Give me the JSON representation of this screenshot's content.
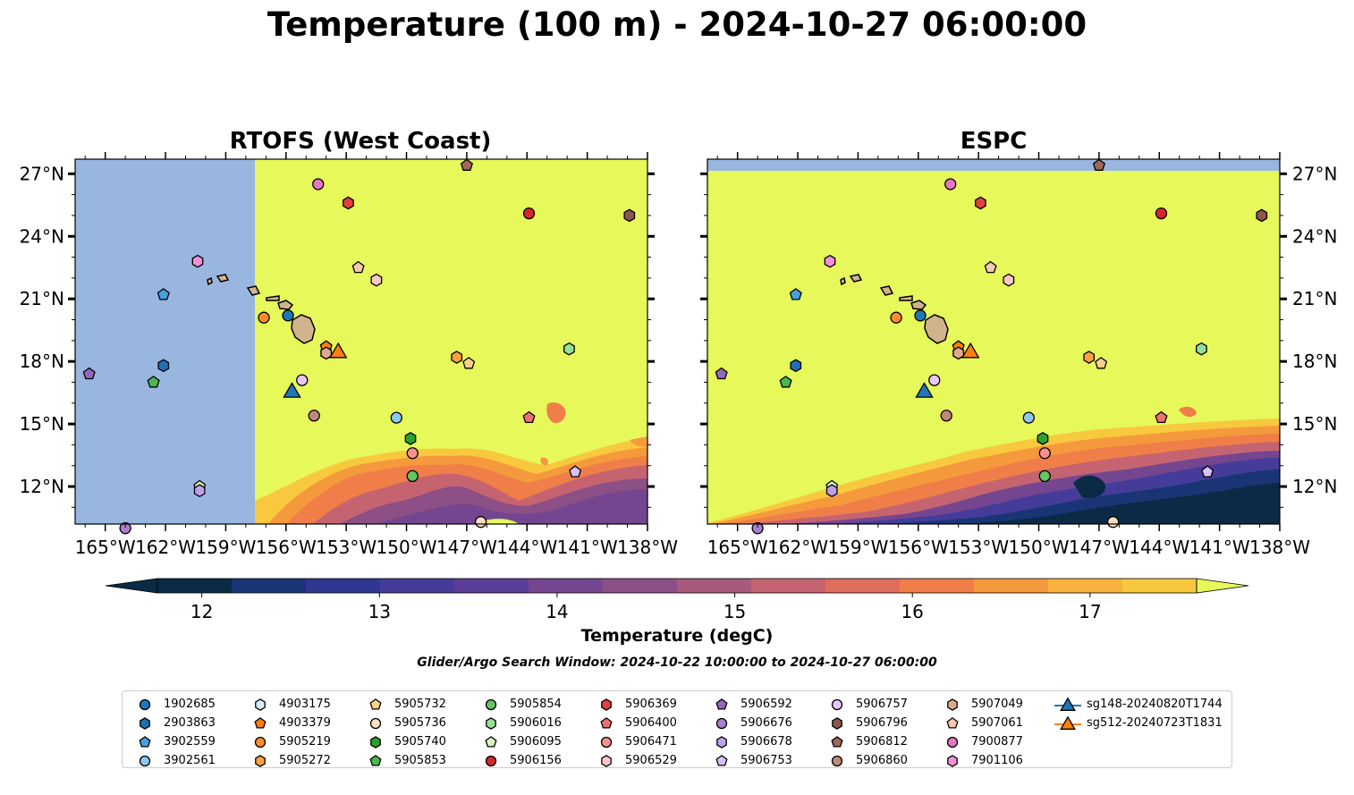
{
  "title": "Temperature (100 m) - 2024-10-27 06:00:00",
  "panels": [
    {
      "title": "RTOFS (West Coast)"
    },
    {
      "title": "ESPC"
    }
  ],
  "axes": {
    "lon_ticks": [
      "165°W",
      "162°W",
      "159°W",
      "156°W",
      "153°W",
      "150°W",
      "147°W",
      "144°W",
      "141°W",
      "138°W"
    ],
    "lat_ticks": [
      "27°N",
      "24°N",
      "21°N",
      "18°N",
      "15°N",
      "12°N"
    ],
    "lon_range": [
      -166.5,
      -138
    ],
    "lat_range": [
      10.2,
      27.7
    ]
  },
  "colorbar": {
    "label": "Temperature (degC)",
    "ticks": [
      "12",
      "13",
      "14",
      "15",
      "16",
      "17"
    ],
    "range": [
      11.75,
      17.6
    ],
    "colors": [
      "#0a2a45",
      "#1a3575",
      "#2e3890",
      "#453c9a",
      "#5a3d98",
      "#744690",
      "#8c4f86",
      "#a85a7c",
      "#c56470",
      "#df6e5d",
      "#f07e48",
      "#f59a3c",
      "#f8b23b",
      "#f8c93e",
      "#e6f85a"
    ],
    "extend": "both"
  },
  "search_window": "Glider/Argo Search Window: 2024-10-22 10:00:00 to 2024-10-27 06:00:00",
  "colors": {
    "ocean_land_mask": "#98b6e0",
    "land": "#d2b48c",
    "warm": "#e6f85a"
  },
  "floats": [
    {
      "id": "1902685",
      "marker": "circle",
      "color": "#1f77b4",
      "lon": -155.9,
      "lat": 20.2
    },
    {
      "id": "2903863",
      "marker": "hexagon",
      "color": "#1f6fb4",
      "lon": -162.1,
      "lat": 17.8
    },
    {
      "id": "3902559",
      "marker": "pentagon",
      "color": "#4a9fe0",
      "lon": -162.1,
      "lat": 21.2
    },
    {
      "id": "3902561",
      "marker": "circle",
      "color": "#8ec8f0",
      "lon": -150.5,
      "lat": 15.3
    },
    {
      "id": "4903175",
      "marker": "hexagon",
      "color": "#d6eefa",
      "lon": -154.0,
      "lat": 18.4
    },
    {
      "id": "4903379",
      "marker": "pentagon",
      "color": "#ff7f0e",
      "lon": -154.0,
      "lat": 18.7
    },
    {
      "id": "5905219",
      "marker": "circle",
      "color": "#ff8c2a",
      "lon": -157.1,
      "lat": 20.1
    },
    {
      "id": "5905272",
      "marker": "hexagon",
      "color": "#ffa040",
      "lon": -147.5,
      "lat": 18.2
    },
    {
      "id": "5905732",
      "marker": "pentagon",
      "color": "#ffd08a",
      "lon": -146.9,
      "lat": 17.9
    },
    {
      "id": "5905736",
      "marker": "circle",
      "color": "#ffe0c0",
      "lon": -146.3,
      "lat": 10.3
    },
    {
      "id": "5905740",
      "marker": "hexagon",
      "color": "#2ca02c",
      "lon": -149.8,
      "lat": 14.3
    },
    {
      "id": "5905853",
      "marker": "pentagon",
      "color": "#4cb84c",
      "lon": -162.6,
      "lat": 17.0
    },
    {
      "id": "5905854",
      "marker": "circle",
      "color": "#66c466",
      "lon": -149.7,
      "lat": 12.5
    },
    {
      "id": "5906016",
      "marker": "hexagon",
      "color": "#98e098",
      "lon": -141.9,
      "lat": 18.6
    },
    {
      "id": "5906095",
      "marker": "pentagon",
      "color": "#d4f5c0",
      "lon": -160.3,
      "lat": 12.0
    },
    {
      "id": "5906156",
      "marker": "circle",
      "color": "#d62728",
      "lon": -143.9,
      "lat": 25.1
    },
    {
      "id": "5906369",
      "marker": "hexagon",
      "color": "#e04040",
      "lon": -152.9,
      "lat": 25.6
    },
    {
      "id": "5906400",
      "marker": "pentagon",
      "color": "#f07070",
      "lon": -143.9,
      "lat": 15.3
    },
    {
      "id": "5906471",
      "marker": "circle",
      "color": "#f89090",
      "lon": -149.7,
      "lat": 13.6
    },
    {
      "id": "5906529",
      "marker": "hexagon",
      "color": "#ffc8c8",
      "lon": -151.5,
      "lat": 21.9
    },
    {
      "id": "5906592",
      "marker": "pentagon",
      "color": "#9467bd",
      "lon": -165.8,
      "lat": 17.4
    },
    {
      "id": "5906676",
      "marker": "circle",
      "color": "#a980d0",
      "lon": -164.0,
      "lat": 10.0
    },
    {
      "id": "5906678",
      "marker": "hexagon",
      "color": "#c0a0e8",
      "lon": -160.3,
      "lat": 11.8
    },
    {
      "id": "5906753",
      "marker": "pentagon",
      "color": "#d8c0f8",
      "lon": -141.6,
      "lat": 12.7
    },
    {
      "id": "5906757",
      "marker": "circle",
      "color": "#e8c8f8",
      "lon": -155.2,
      "lat": 17.1
    },
    {
      "id": "5906796",
      "marker": "hexagon",
      "color": "#8c564b",
      "lon": -138.9,
      "lat": 25.0
    },
    {
      "id": "5906812",
      "marker": "pentagon",
      "color": "#a0685a",
      "lon": -147.0,
      "lat": 27.4
    },
    {
      "id": "5906860",
      "marker": "circle",
      "color": "#c08878",
      "lon": -154.6,
      "lat": 15.4
    },
    {
      "id": "5907049",
      "marker": "hexagon",
      "color": "#e0a890",
      "lon": -154.0,
      "lat": 18.4
    },
    {
      "id": "5907061",
      "marker": "pentagon",
      "color": "#f8c8b0",
      "lon": -152.4,
      "lat": 22.5
    },
    {
      "id": "7900877",
      "marker": "circle",
      "color": "#e377c2",
      "lon": -154.4,
      "lat": 26.5
    },
    {
      "id": "7901106",
      "marker": "hexagon",
      "color": "#f090d8",
      "lon": -160.4,
      "lat": 22.8
    },
    {
      "id": "sg148-20240820T1744",
      "marker": "triangle",
      "color": "#1f77b4",
      "lon": -155.7,
      "lat": 16.6
    },
    {
      "id": "sg512-20240723T1831",
      "marker": "triangle",
      "color": "#ff7f0e",
      "lon": -153.4,
      "lat": 18.5
    }
  ]
}
